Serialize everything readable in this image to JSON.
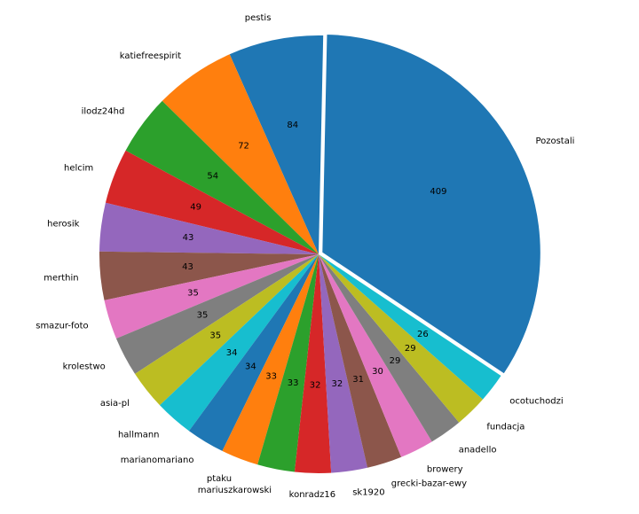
{
  "chart_data": {
    "type": "pie",
    "title": "",
    "categories": [
      "Pozostali",
      "pestis",
      "katiefreespirit",
      "ilodz24hd",
      "helcim",
      "herosik",
      "merthin",
      "smazur-foto",
      "krolestwo",
      "asia-pl",
      "hallmann",
      "marianomariano",
      "ptaku",
      "mariuszkarowski",
      "konradz16",
      "sk1920",
      "grecki-bazar-ewy",
      "browery",
      "anadello",
      "fundacja",
      "ocotuchodzi"
    ],
    "values": [
      409,
      84,
      72,
      54,
      49,
      43,
      43,
      35,
      35,
      35,
      34,
      34,
      33,
      33,
      32,
      32,
      31,
      30,
      29,
      29,
      26
    ],
    "value_labels": [
      "409",
      "84",
      "72",
      "54",
      "49",
      "43",
      "43",
      "35",
      "35",
      "35",
      "34",
      "34",
      "33",
      "33",
      "32",
      "32",
      "31",
      "30",
      "29",
      "29",
      "26"
    ],
    "colors": [
      "#1f77b4",
      "#1f77b4",
      "#ff7f0e",
      "#2ca02c",
      "#d62728",
      "#9467bd",
      "#8c564b",
      "#e377c2",
      "#7f7f7f",
      "#bcbd22",
      "#17becf",
      "#1f77b4",
      "#ff7f0e",
      "#2ca02c",
      "#d62728",
      "#9467bd",
      "#8c564b",
      "#e377c2",
      "#7f7f7f",
      "#bcbd22",
      "#17becf"
    ],
    "exploded_slices": [
      "Pozostali"
    ],
    "direction": "counterclockwise",
    "legend": "none"
  }
}
